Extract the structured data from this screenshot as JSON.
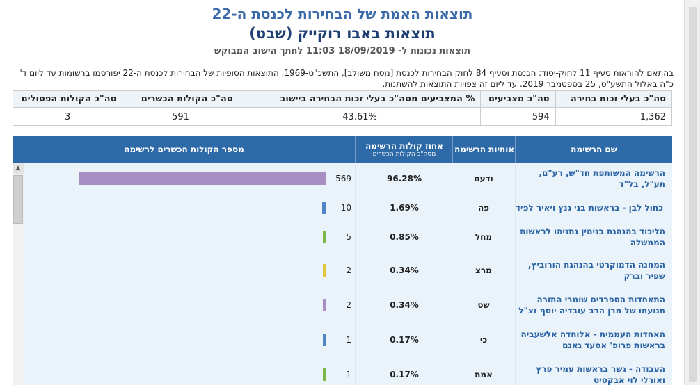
{
  "header": {
    "title_main": "תוצאות האמת של הבחירות לכנסת ה-22",
    "title_locality": "תוצאות באבו רוקייק (שבט)",
    "results_as_of": "תוצאות נכונות ל- 18/09/2019 11:03 לחתך הישוב המבוקש"
  },
  "note": "בהתאם להוראות סעיף 11 לחוק-יסוד: הכנסת וסעיף 84 לחוק הבחירות לכנסת [נוסח משולב], התשכ\"ט-1969, התוצאות הסופיות של הבחירות לכנסת ה-22 יפורסמו ברשומות עד ליום ד' כ\"ה באלול התשע\"ט, 25 בספטמבר 2019. עד ליום זה צפויות התוצאות להשתנות.",
  "summary": {
    "labels": [
      "סה\"כ בעלי זכות בחירה",
      "סה\"כ מצביעים",
      "% המצביעים מסה\"כ בעלי זכות הבחירה ביישוב",
      "סה\"כ הקולות הכשרים",
      "סה\"כ הקולות הפסולים"
    ],
    "values": [
      "1,362",
      "594",
      "43.61%",
      "591",
      "3"
    ]
  },
  "table": {
    "headers": {
      "list_name": "שם הרשימה",
      "list_letters": "אותיות הרשימה",
      "percent": "אחוז קולות הרשימה",
      "percent_sub": "מסה\"כ הקולות הכשרים",
      "votes": "מספר הקולות הכשרים לרשימה"
    },
    "rows": [
      {
        "name": "הרשימה המשותפת חד\"ש, רע\"ם, תע\"ל, בל\"ד",
        "letters": "ודעם",
        "pct": "96.28%",
        "votes": "569",
        "color": "#a78fc4"
      },
      {
        "name": "כחול לבן - בראשות בני גנץ ויאיר לפיד",
        "letters": "פה",
        "pct": "1.69%",
        "votes": "10",
        "color": "#4e86c6"
      },
      {
        "name": "הליכוד בהנהגת בנימין נתניהו לראשות הממשלה",
        "letters": "מחל",
        "pct": "0.85%",
        "votes": "5",
        "color": "#7ab648"
      },
      {
        "name": "המחנה הדמוקרטי בהנהגת הורוביץ, שפיר וברק",
        "letters": "מרצ",
        "pct": "0.34%",
        "votes": "2",
        "color": "#e0c43a"
      },
      {
        "name": "התאחדות הספרדים שומרי התורה תנועתו של מרן הרב עובדיה יוסף זצ\"ל",
        "letters": "שס",
        "pct": "0.34%",
        "votes": "2",
        "color": "#a78fc4"
      },
      {
        "name": "האחדות העממית - אלוחדה אלשעביה בראשות פרופ' אסעד גאנם",
        "letters": "כי",
        "pct": "0.17%",
        "votes": "1",
        "color": "#4e86c6"
      },
      {
        "name": "העבודה - גשר בראשות עמיר פרץ ואורלי לוי אבקסיס",
        "letters": "אמת",
        "pct": "0.17%",
        "votes": "1",
        "color": "#7ab648"
      }
    ],
    "max_votes": 569
  }
}
